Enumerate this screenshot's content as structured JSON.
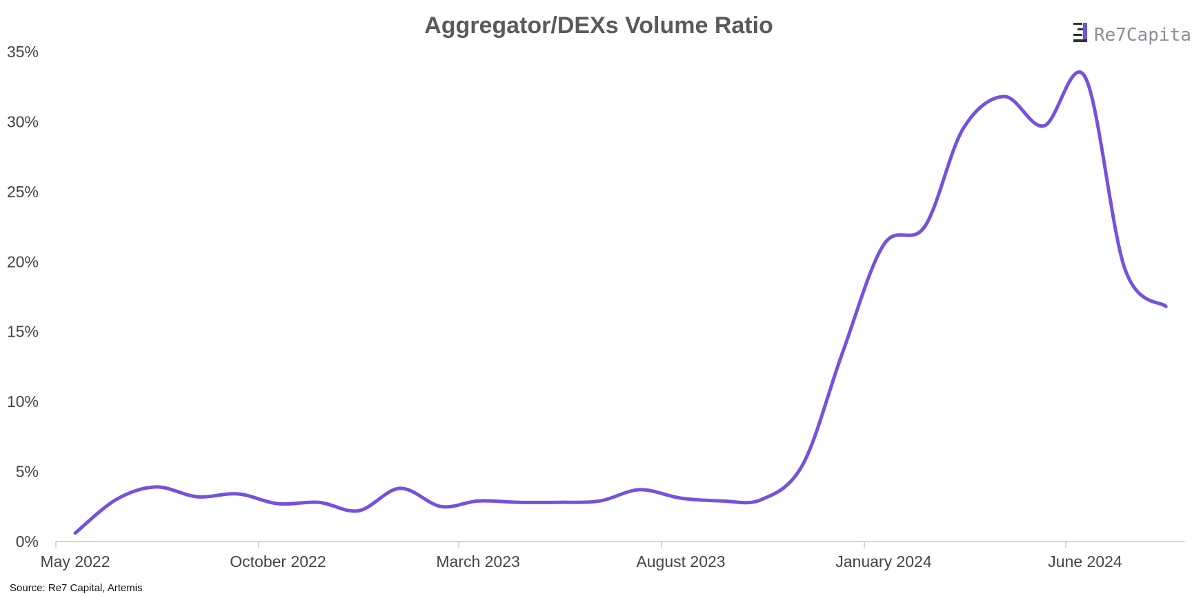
{
  "colors": {
    "line": "#7452de",
    "title": "#5a5a5a",
    "axis": "#c8c8c8",
    "logo_dark": "#2f3138",
    "logo_accent": "#7452de"
  },
  "logo": {
    "part1": "Re7",
    "part2": "Capital",
    "icon": "re7-bars-icon"
  },
  "source": "Source: Re7 Capital, Artemis",
  "chart_data": {
    "type": "line",
    "title": "Aggregator/DEXs Volume Ratio",
    "xlabel": "",
    "ylabel": "",
    "ylim": [
      0,
      35
    ],
    "yticks": [
      0,
      5,
      10,
      15,
      20,
      25,
      30,
      35
    ],
    "ytick_labels": [
      "0%",
      "5%",
      "10%",
      "15%",
      "20%",
      "25%",
      "30%",
      "35%"
    ],
    "xlim": [
      "2022-04-01",
      "2024-09-01"
    ],
    "xticks": [
      "2022-05-01",
      "2022-10-01",
      "2023-03-01",
      "2023-08-01",
      "2024-01-01",
      "2024-06-01"
    ],
    "xtick_labels": [
      "May 2022",
      "October 2022",
      "March 2023",
      "August 2023",
      "January 2024",
      "June 2024"
    ],
    "grid": false,
    "legend": "none",
    "series": [
      {
        "x": [
          "2022-05-01",
          "2022-06-01",
          "2022-07-01",
          "2022-08-01",
          "2022-09-01",
          "2022-10-01",
          "2022-11-01",
          "2022-12-01",
          "2023-01-01",
          "2023-02-01",
          "2023-03-01",
          "2023-04-01",
          "2023-05-01",
          "2023-06-01",
          "2023-07-01",
          "2023-08-01",
          "2023-09-01",
          "2023-10-01",
          "2023-11-01",
          "2023-12-01",
          "2024-01-01",
          "2024-02-01",
          "2024-03-01",
          "2024-04-01",
          "2024-05-01",
          "2024-06-01",
          "2024-07-01",
          "2024-08-01"
        ],
        "values": [
          0.6,
          3.0,
          3.9,
          3.2,
          3.4,
          2.7,
          2.8,
          2.2,
          3.8,
          2.5,
          2.9,
          2.8,
          2.8,
          2.9,
          3.7,
          3.1,
          2.9,
          3.0,
          5.5,
          13.5,
          21.2,
          22.5,
          29.5,
          31.8,
          29.7,
          33.2,
          19.5,
          16.8
        ]
      }
    ]
  }
}
